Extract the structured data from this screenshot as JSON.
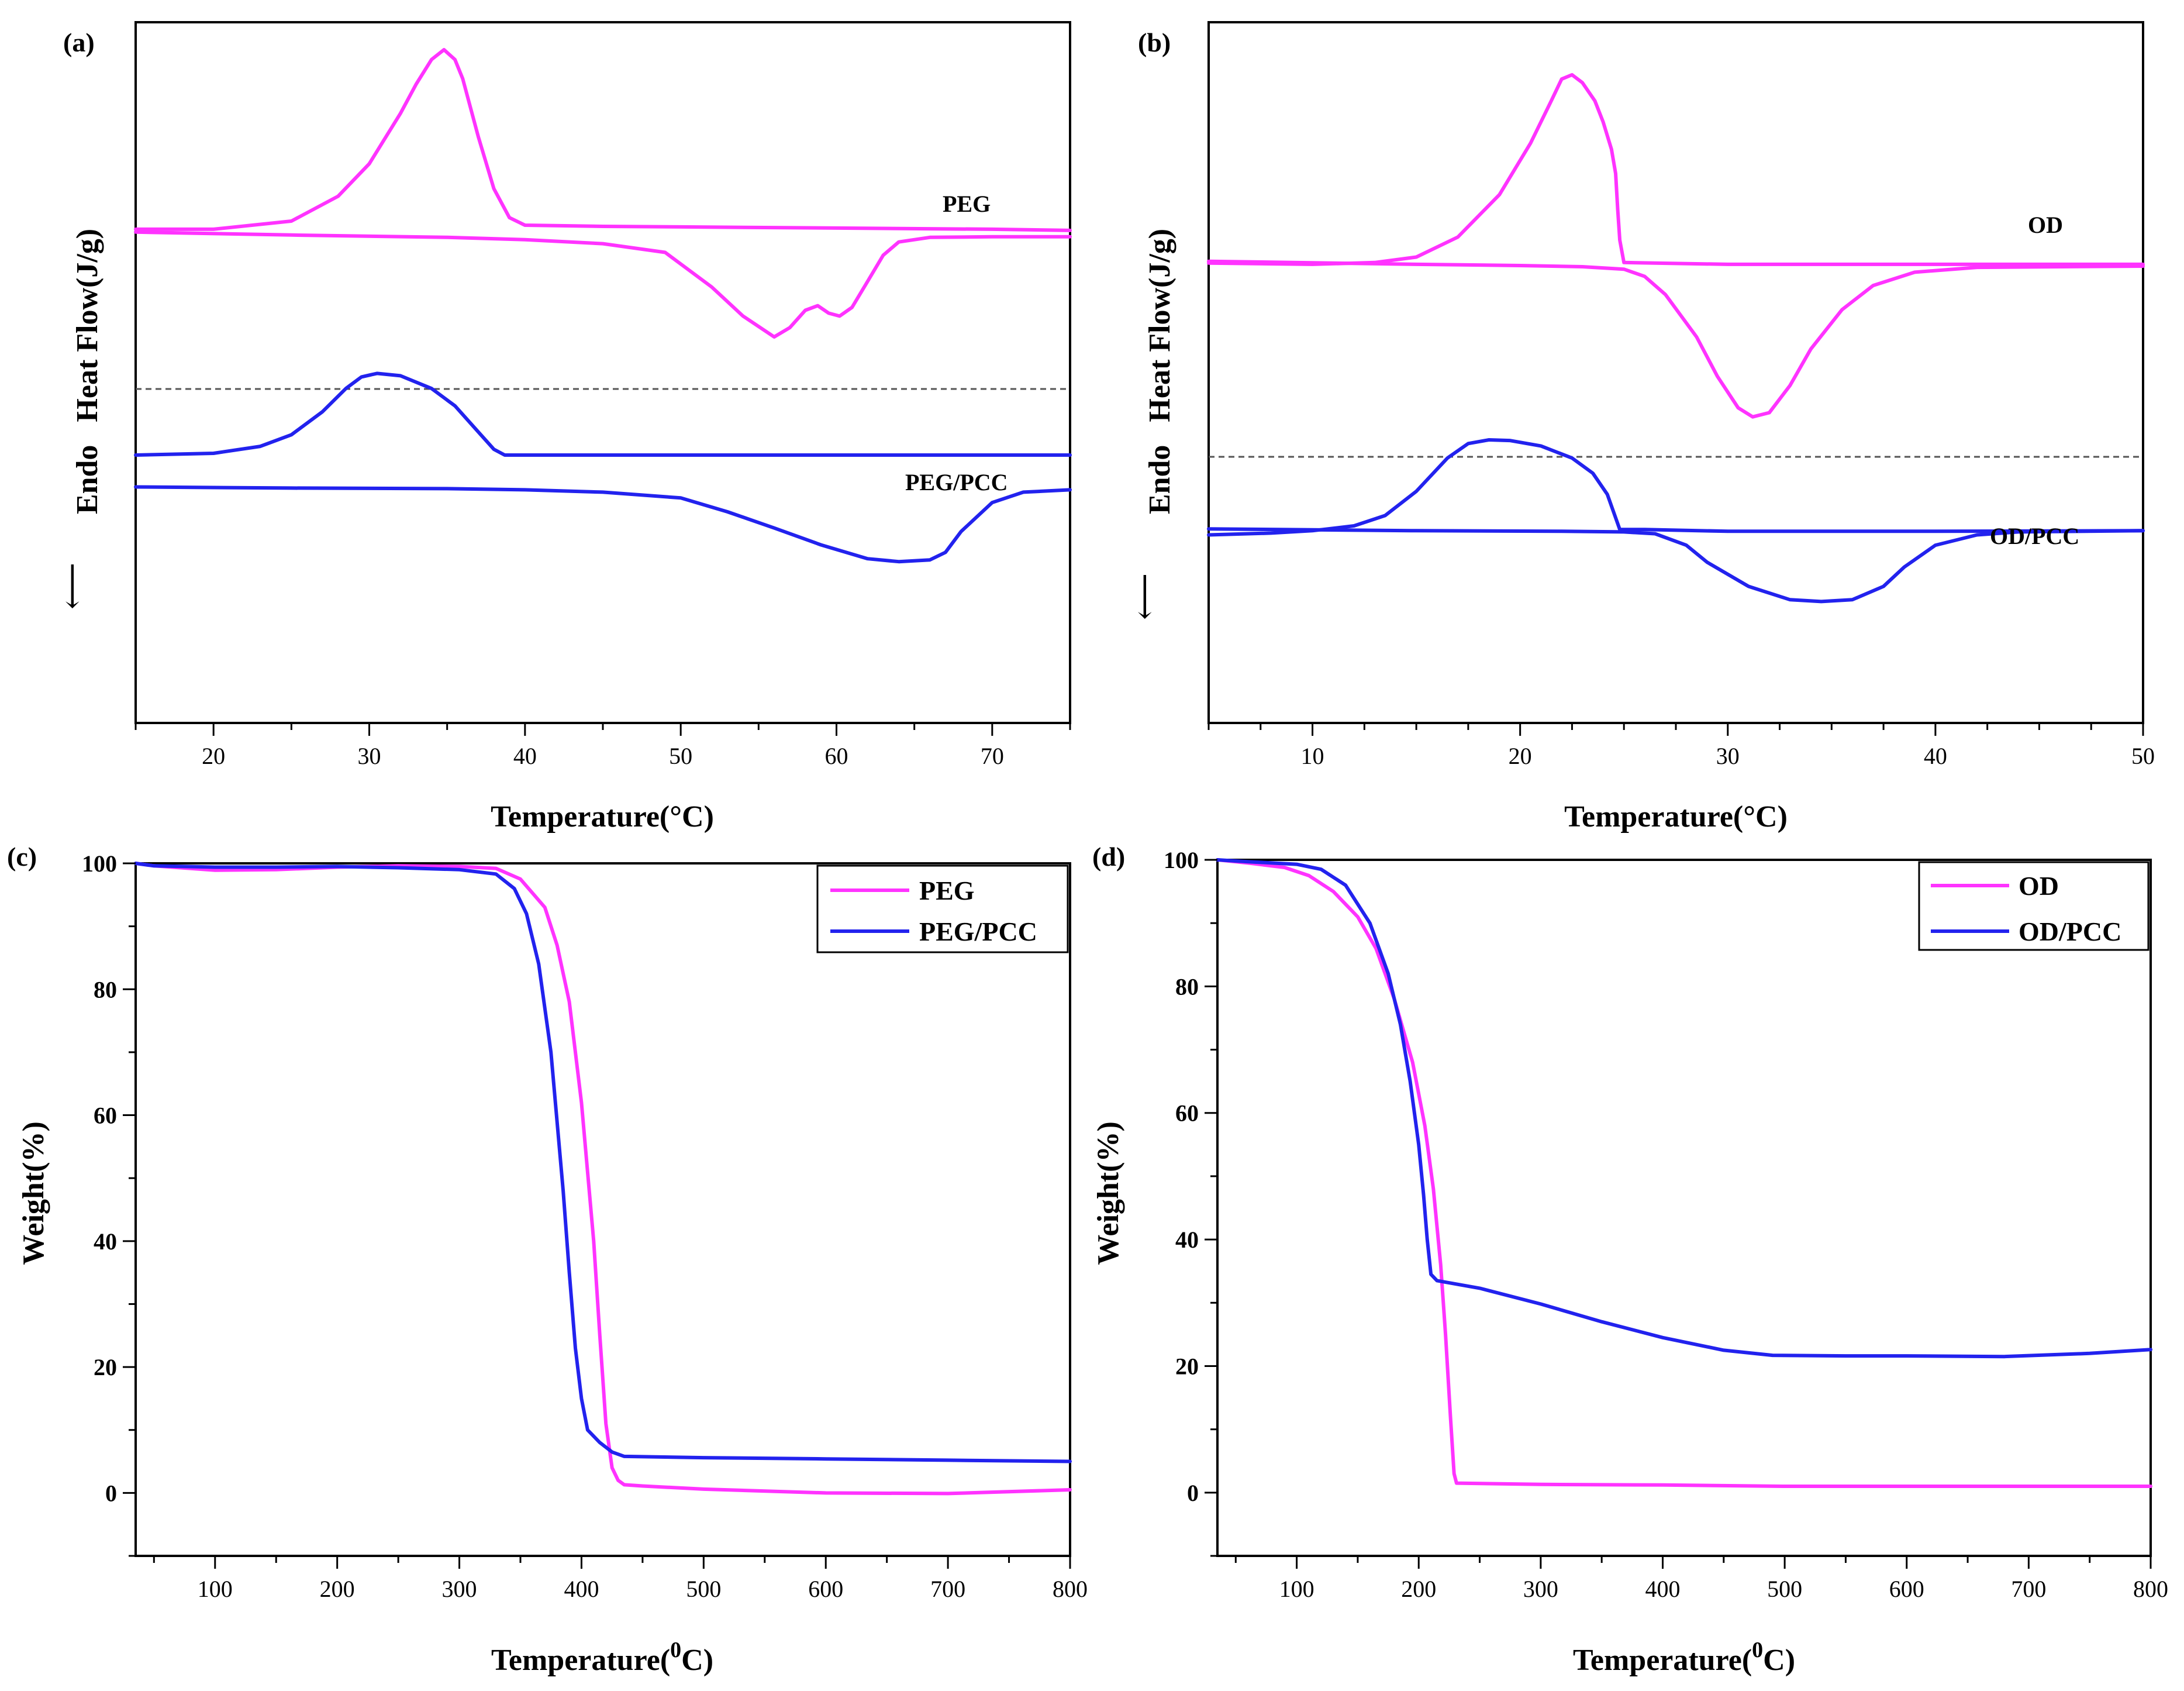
{
  "colors": {
    "peg": "#ff33ff",
    "composite": "#2222ee",
    "axis": "#000000",
    "separator": "#555555"
  },
  "chart_data": [
    {
      "panel": "(a)",
      "type": "line",
      "subtype": "DSC",
      "xlabel": "Temperature(°C)",
      "ylabel": "Endo   Heat Flow(J/g)",
      "xlim": [
        15,
        75
      ],
      "ylim": [
        0,
        100
      ],
      "x_ticks": [
        20,
        30,
        40,
        50,
        60,
        70
      ],
      "labels": {
        "top": "PEG",
        "bottom": "PEG/PCC"
      },
      "series": [
        {
          "name": "PEG cooling",
          "color": "peg",
          "points": [
            [
              15,
              69
            ],
            [
              20,
              69
            ],
            [
              25,
              70.4
            ],
            [
              28,
              74.7
            ],
            [
              30,
              80.3
            ],
            [
              32,
              89
            ],
            [
              33,
              94
            ],
            [
              34,
              98.3
            ],
            [
              34.8,
              100
            ],
            [
              35.5,
              98.3
            ],
            [
              36,
              95
            ],
            [
              37,
              85
            ],
            [
              38,
              76
            ],
            [
              39,
              71
            ],
            [
              40,
              69.7
            ],
            [
              45,
              69.5
            ],
            [
              50,
              69.4
            ],
            [
              60,
              69.2
            ],
            [
              70,
              69
            ],
            [
              75,
              68.8
            ]
          ]
        },
        {
          "name": "PEG heating",
          "color": "peg",
          "points": [
            [
              15,
              68.5
            ],
            [
              25,
              68
            ],
            [
              35,
              67.6
            ],
            [
              40,
              67.2
            ],
            [
              45,
              66.5
            ],
            [
              49,
              65
            ],
            [
              52,
              59
            ],
            [
              54,
              54
            ],
            [
              56,
              50.4
            ],
            [
              57,
              52
            ],
            [
              58,
              55
            ],
            [
              58.8,
              55.8
            ],
            [
              59.5,
              54.5
            ],
            [
              60.2,
              54
            ],
            [
              61,
              55.5
            ],
            [
              62,
              60
            ],
            [
              63,
              64.5
            ],
            [
              64,
              66.8
            ],
            [
              66,
              67.6
            ],
            [
              70,
              67.7
            ],
            [
              75,
              67.7
            ]
          ]
        },
        {
          "name": "PEG/PCC cooling",
          "color": "composite",
          "points": [
            [
              15,
              30
            ],
            [
              20,
              30.3
            ],
            [
              23,
              31.5
            ],
            [
              25,
              33.5
            ],
            [
              27,
              37.5
            ],
            [
              28.5,
              41.5
            ],
            [
              29.5,
              43.5
            ],
            [
              30.5,
              44.1
            ],
            [
              32,
              43.7
            ],
            [
              34,
              41.5
            ],
            [
              35.5,
              38.5
            ],
            [
              37,
              34
            ],
            [
              38,
              31
            ],
            [
              38.7,
              30
            ],
            [
              40,
              30
            ],
            [
              50,
              30
            ],
            [
              60,
              30
            ],
            [
              75,
              30
            ]
          ]
        },
        {
          "name": "PEG/PCC heating",
          "color": "composite",
          "points": [
            [
              15,
              24.5
            ],
            [
              25,
              24.3
            ],
            [
              35,
              24.2
            ],
            [
              40,
              24
            ],
            [
              45,
              23.6
            ],
            [
              50,
              22.6
            ],
            [
              53,
              20.2
            ],
            [
              56,
              17.4
            ],
            [
              59,
              14.5
            ],
            [
              62,
              12.1
            ],
            [
              64,
              11.6
            ],
            [
              66,
              11.9
            ],
            [
              67,
              13.2
            ],
            [
              68,
              16.8
            ],
            [
              70,
              21.8
            ],
            [
              72,
              23.6
            ],
            [
              75,
              24
            ]
          ]
        }
      ]
    },
    {
      "panel": "(b)",
      "type": "line",
      "subtype": "DSC",
      "xlabel": "Temperature(°C)",
      "ylabel": "Endo   Heat Flow(J/g)",
      "xlim": [
        5,
        50
      ],
      "ylim": [
        0,
        100
      ],
      "x_ticks": [
        10,
        20,
        30,
        40,
        50
      ],
      "labels": {
        "top": "OD",
        "bottom": "OD/PCC"
      },
      "series": [
        {
          "name": "OD cooling",
          "color": "peg",
          "points": [
            [
              5,
              66.2
            ],
            [
              10,
              66
            ],
            [
              13,
              66.3
            ],
            [
              15,
              67.2
            ],
            [
              17,
              70.5
            ],
            [
              19,
              77.5
            ],
            [
              20.5,
              86
            ],
            [
              21.5,
              93
            ],
            [
              22,
              96.6
            ],
            [
              22.5,
              97.3
            ],
            [
              23,
              96
            ],
            [
              23.6,
              93
            ],
            [
              24,
              89.5
            ],
            [
              24.4,
              85
            ],
            [
              24.6,
              81
            ],
            [
              24.7,
              75
            ],
            [
              24.8,
              70
            ],
            [
              25,
              66.3
            ],
            [
              30,
              66
            ],
            [
              40,
              66
            ],
            [
              50,
              66
            ]
          ]
        },
        {
          "name": "OD heating",
          "color": "peg",
          "points": [
            [
              5,
              66.5
            ],
            [
              15,
              66
            ],
            [
              20,
              65.8
            ],
            [
              23,
              65.6
            ],
            [
              25,
              65.2
            ],
            [
              26,
              64
            ],
            [
              27,
              61
            ],
            [
              28.5,
              54
            ],
            [
              29.5,
              47.5
            ],
            [
              30.5,
              42.3
            ],
            [
              31.2,
              40.8
            ],
            [
              32,
              41.5
            ],
            [
              33,
              46
            ],
            [
              34,
              52
            ],
            [
              35.5,
              58.5
            ],
            [
              37,
              62.5
            ],
            [
              39,
              64.7
            ],
            [
              42,
              65.5
            ],
            [
              50,
              65.7
            ]
          ]
        },
        {
          "name": "OD/PCC cooling",
          "color": "composite",
          "points": [
            [
              5,
              21.3
            ],
            [
              8,
              21.6
            ],
            [
              10,
              22
            ],
            [
              12,
              22.8
            ],
            [
              13.5,
              24.5
            ],
            [
              15,
              28.5
            ],
            [
              16.5,
              34
            ],
            [
              17.5,
              36.4
            ],
            [
              18.5,
              37
            ],
            [
              19.5,
              36.9
            ],
            [
              21,
              36
            ],
            [
              22.5,
              34
            ],
            [
              23.5,
              31.5
            ],
            [
              24.2,
              28
            ],
            [
              24.8,
              22.2
            ],
            [
              26,
              22.2
            ],
            [
              30,
              21.9
            ],
            [
              40,
              21.9
            ],
            [
              50,
              22
            ]
          ]
        },
        {
          "name": "OD/PCC heating",
          "color": "composite",
          "points": [
            [
              5,
              22.3
            ],
            [
              15,
              22
            ],
            [
              22,
              21.9
            ],
            [
              25,
              21.8
            ],
            [
              26.5,
              21.5
            ],
            [
              28,
              19.6
            ],
            [
              29,
              16.8
            ],
            [
              31,
              12.8
            ],
            [
              33,
              10.6
            ],
            [
              34.5,
              10.3
            ],
            [
              36,
              10.6
            ],
            [
              37.5,
              12.8
            ],
            [
              38.5,
              16
            ],
            [
              40,
              19.6
            ],
            [
              42,
              21.3
            ],
            [
              44,
              21.8
            ],
            [
              50,
              22
            ]
          ]
        }
      ]
    },
    {
      "panel": "(c)",
      "type": "line",
      "subtype": "TGA",
      "xlabel": "Temperature(",
      "xlabel_sup": "0",
      "xlabel_end": "C)",
      "ylabel": "Weight(%)",
      "xlim": [
        35,
        800
      ],
      "ylim": [
        -10,
        100
      ],
      "x_ticks": [
        100,
        200,
        300,
        400,
        500,
        600,
        700,
        800
      ],
      "y_ticks": [
        0,
        20,
        40,
        60,
        80,
        100
      ],
      "legend": {
        "position": "top-right",
        "entries": [
          "PEG",
          "PEG/PCC"
        ]
      },
      "series": [
        {
          "name": "PEG",
          "color": "peg",
          "points": [
            [
              35,
              100
            ],
            [
              50,
              99.6
            ],
            [
              100,
              98.9
            ],
            [
              150,
              99
            ],
            [
              200,
              99.4
            ],
            [
              250,
              99.6
            ],
            [
              300,
              99.5
            ],
            [
              330,
              99.2
            ],
            [
              350,
              97.5
            ],
            [
              370,
              93
            ],
            [
              380,
              87
            ],
            [
              390,
              78
            ],
            [
              400,
              62
            ],
            [
              410,
              40
            ],
            [
              415,
              25
            ],
            [
              420,
              11
            ],
            [
              425,
              4
            ],
            [
              430,
              2
            ],
            [
              435,
              1.3
            ],
            [
              450,
              1.1
            ],
            [
              500,
              0.6
            ],
            [
              600,
              0
            ],
            [
              700,
              -0.1
            ],
            [
              800,
              0.5
            ]
          ]
        },
        {
          "name": "PEG/PCC",
          "color": "composite",
          "points": [
            [
              35,
              100
            ],
            [
              50,
              99.6
            ],
            [
              100,
              99.4
            ],
            [
              150,
              99.4
            ],
            [
              200,
              99.5
            ],
            [
              250,
              99.3
            ],
            [
              300,
              99
            ],
            [
              330,
              98.3
            ],
            [
              345,
              96
            ],
            [
              355,
              92
            ],
            [
              365,
              84
            ],
            [
              375,
              70
            ],
            [
              385,
              48
            ],
            [
              390,
              35
            ],
            [
              395,
              23
            ],
            [
              400,
              15
            ],
            [
              405,
              10
            ],
            [
              415,
              8
            ],
            [
              425,
              6.5
            ],
            [
              435,
              5.8
            ],
            [
              500,
              5.6
            ],
            [
              600,
              5.4
            ],
            [
              700,
              5.2
            ],
            [
              800,
              5
            ]
          ]
        }
      ]
    },
    {
      "panel": "(d)",
      "type": "line",
      "subtype": "TGA",
      "xlabel": "Temperature(",
      "xlabel_sup": "0",
      "xlabel_end": "C)",
      "ylabel": "Weight(%)",
      "xlim": [
        35,
        800
      ],
      "ylim": [
        -10,
        100
      ],
      "x_ticks": [
        100,
        200,
        300,
        400,
        500,
        600,
        700,
        800
      ],
      "y_ticks": [
        0,
        20,
        40,
        60,
        80,
        100
      ],
      "legend": {
        "position": "top-right",
        "entries": [
          "OD",
          "OD/PCC"
        ]
      },
      "series": [
        {
          "name": "OD",
          "color": "peg",
          "points": [
            [
              35,
              100
            ],
            [
              60,
              99.5
            ],
            [
              90,
              98.8
            ],
            [
              110,
              97.5
            ],
            [
              130,
              95
            ],
            [
              150,
              91
            ],
            [
              165,
              86
            ],
            [
              180,
              78
            ],
            [
              195,
              68
            ],
            [
              205,
              58
            ],
            [
              212,
              48
            ],
            [
              218,
              36
            ],
            [
              222,
              25
            ],
            [
              226,
              12
            ],
            [
              229,
              3
            ],
            [
              231,
              1.5
            ],
            [
              300,
              1.3
            ],
            [
              400,
              1.2
            ],
            [
              500,
              1
            ],
            [
              600,
              1
            ],
            [
              700,
              1
            ],
            [
              800,
              1
            ]
          ]
        },
        {
          "name": "OD/PCC",
          "color": "composite",
          "points": [
            [
              35,
              100
            ],
            [
              60,
              99.7
            ],
            [
              100,
              99.3
            ],
            [
              120,
              98.5
            ],
            [
              140,
              96
            ],
            [
              160,
              90
            ],
            [
              175,
              82
            ],
            [
              185,
              74
            ],
            [
              193,
              65
            ],
            [
              200,
              55
            ],
            [
              204,
              47
            ],
            [
              207,
              40
            ],
            [
              210,
              34.5
            ],
            [
              215,
              33.5
            ],
            [
              250,
              32.3
            ],
            [
              300,
              29.8
            ],
            [
              350,
              27
            ],
            [
              400,
              24.5
            ],
            [
              450,
              22.5
            ],
            [
              490,
              21.7
            ],
            [
              550,
              21.6
            ],
            [
              600,
              21.6
            ],
            [
              680,
              21.5
            ],
            [
              750,
              22
            ],
            [
              800,
              22.6
            ]
          ]
        }
      ]
    }
  ]
}
